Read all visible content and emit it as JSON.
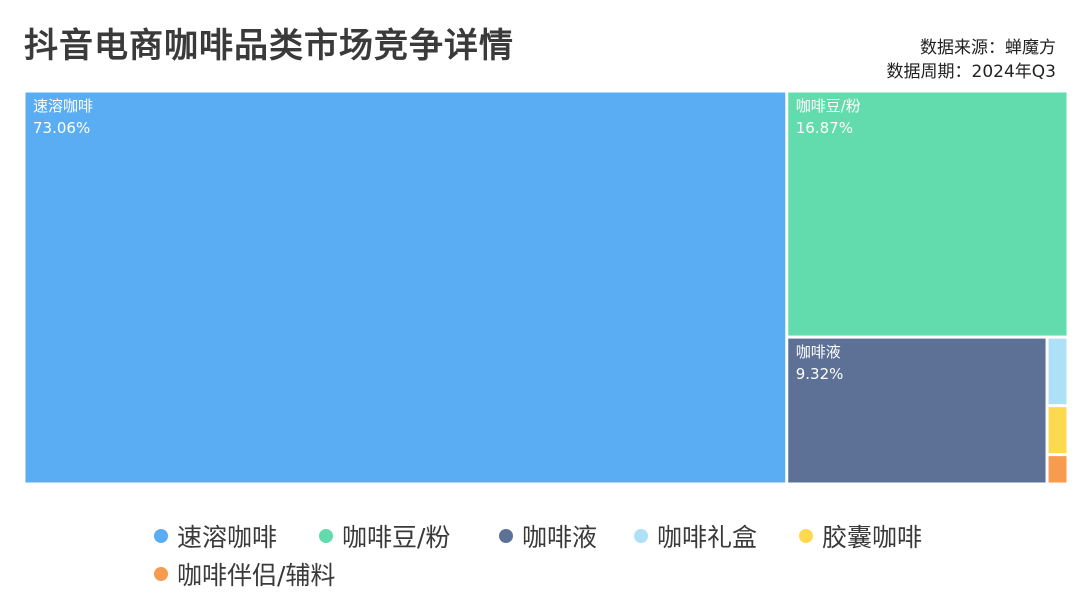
{
  "header": {
    "title": "抖音电商咖啡品类市场竞争详情",
    "source": "数据来源：蝉魔方",
    "period": "数据周期：2024年Q3"
  },
  "chart_data": {
    "type": "treemap",
    "title": "抖音电商咖啡品类市场竞争详情",
    "unit": "%",
    "legend_position": "bottom",
    "series": [
      {
        "name": "速溶咖啡",
        "value": 73.06,
        "label": "73.06%",
        "color": "#5aadf2"
      },
      {
        "name": "咖啡豆/粉",
        "value": 16.87,
        "label": "16.87%",
        "color": "#62dbad"
      },
      {
        "name": "咖啡液",
        "value": 9.32,
        "label": "9.32%",
        "color": "#5d7096"
      },
      {
        "name": "咖啡礼盒",
        "value": 0.35,
        "label": "",
        "color": "#aee0f8"
      },
      {
        "name": "胶囊咖啡",
        "value": 0.25,
        "label": "",
        "color": "#fcd94e"
      },
      {
        "name": "咖啡伴侣/辅料",
        "value": 0.15,
        "label": "",
        "color": "#f79b4f"
      }
    ]
  }
}
